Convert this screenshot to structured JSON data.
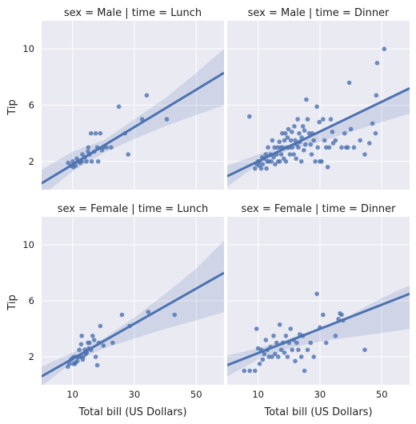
{
  "chart_data": {
    "type": "scatter",
    "xlabel": "Total bill (US Dollars)",
    "ylabel": "Tip",
    "xlim": [
      0,
      59
    ],
    "ylim": [
      0,
      12
    ],
    "xticks": [
      10,
      30,
      50
    ],
    "yticks": [
      2,
      6,
      10
    ],
    "grid": true,
    "panels": [
      {
        "title": "sex = Male | time = Lunch",
        "fit": {
          "x": [
            0,
            59
          ],
          "y": [
            0.45,
            8.3
          ]
        },
        "band": {
          "x": [
            0,
            10,
            20,
            30,
            40,
            50,
            59
          ],
          "lo": [
            -0.5,
            1.3,
            2.6,
            3.6,
            4.5,
            5.3,
            6.0
          ],
          "hi": [
            1.4,
            2.7,
            3.5,
            5.0,
            6.5,
            8.3,
            10.0
          ]
        },
        "points": [
          [
            8.6,
            1.9
          ],
          [
            9.5,
            1.7
          ],
          [
            10.1,
            2.0
          ],
          [
            10.3,
            1.6
          ],
          [
            11.0,
            1.7
          ],
          [
            11.4,
            2.2
          ],
          [
            12.0,
            2.0
          ],
          [
            12.5,
            1.9
          ],
          [
            13.0,
            2.0
          ],
          [
            13.2,
            2.5
          ],
          [
            14.0,
            2.3
          ],
          [
            14.5,
            2.0
          ],
          [
            15.0,
            2.7
          ],
          [
            15.1,
            3.0
          ],
          [
            15.5,
            2.5
          ],
          [
            16.0,
            4.0
          ],
          [
            16.2,
            2.0
          ],
          [
            17.0,
            2.7
          ],
          [
            17.5,
            4.0
          ],
          [
            18.0,
            3.0
          ],
          [
            18.3,
            2.0
          ],
          [
            19.0,
            4.0
          ],
          [
            19.5,
            2.8
          ],
          [
            20.0,
            3.0
          ],
          [
            21.0,
            3.0
          ],
          [
            22.5,
            3.0
          ],
          [
            25.0,
            5.9
          ],
          [
            27.0,
            4.0
          ],
          [
            28.0,
            2.5
          ],
          [
            32.5,
            5.0
          ],
          [
            34.0,
            6.7
          ],
          [
            40.5,
            5.0
          ]
        ]
      },
      {
        "title": "sex = Male | time = Dinner",
        "fit": {
          "x": [
            0,
            59
          ],
          "y": [
            0.95,
            7.2
          ]
        },
        "band": {
          "x": [
            0,
            10,
            20,
            30,
            40,
            50,
            59
          ],
          "lo": [
            0.2,
            1.8,
            2.8,
            3.4,
            4.1,
            4.8,
            5.4
          ],
          "hi": [
            1.7,
            2.5,
            3.2,
            4.1,
            5.2,
            6.3,
            7.3
          ]
        },
        "points": [
          [
            7.2,
            5.2
          ],
          [
            9.0,
            1.5
          ],
          [
            9.6,
            1.8
          ],
          [
            10.0,
            2.0
          ],
          [
            10.3,
            1.7
          ],
          [
            10.5,
            2.0
          ],
          [
            11.0,
            1.5
          ],
          [
            11.3,
            2.3
          ],
          [
            11.5,
            1.8
          ],
          [
            12.0,
            2.2
          ],
          [
            12.5,
            2.5
          ],
          [
            12.7,
            1.5
          ],
          [
            13.0,
            2.0
          ],
          [
            13.2,
            3.0
          ],
          [
            13.5,
            2.0
          ],
          [
            14.0,
            2.5
          ],
          [
            14.3,
            2.0
          ],
          [
            14.6,
            3.5
          ],
          [
            15.0,
            2.3
          ],
          [
            15.3,
            3.0
          ],
          [
            15.5,
            1.8
          ],
          [
            16.0,
            2.5
          ],
          [
            16.3,
            3.0
          ],
          [
            16.5,
            2.0
          ],
          [
            16.9,
            3.4
          ],
          [
            17.0,
            2.0
          ],
          [
            17.3,
            3.0
          ],
          [
            17.5,
            2.5
          ],
          [
            17.8,
            4.0
          ],
          [
            18.0,
            3.0
          ],
          [
            18.3,
            2.2
          ],
          [
            18.5,
            3.5
          ],
          [
            18.8,
            4.0
          ],
          [
            19.0,
            2.0
          ],
          [
            19.3,
            3.0
          ],
          [
            19.5,
            3.7
          ],
          [
            19.8,
            4.3
          ],
          [
            20.0,
            3.0
          ],
          [
            20.3,
            2.5
          ],
          [
            20.6,
            3.5
          ],
          [
            20.9,
            4.1
          ],
          [
            21.0,
            3.0
          ],
          [
            21.5,
            2.5
          ],
          [
            21.7,
            4.5
          ],
          [
            22.0,
            3.5
          ],
          [
            22.3,
            2.2
          ],
          [
            22.5,
            3.2
          ],
          [
            22.8,
            5.0
          ],
          [
            23.0,
            3.0
          ],
          [
            23.3,
            4.0
          ],
          [
            23.5,
            3.4
          ],
          [
            24.0,
            2.0
          ],
          [
            24.1,
            3.7
          ],
          [
            24.5,
            4.5
          ],
          [
            24.8,
            2.8
          ],
          [
            25.0,
            4.2
          ],
          [
            25.3,
            3.2
          ],
          [
            25.6,
            6.4
          ],
          [
            26.0,
            5.0
          ],
          [
            26.5,
            4.0
          ],
          [
            27.0,
            3.2
          ],
          [
            27.3,
            2.5
          ],
          [
            27.5,
            4.0
          ],
          [
            28.0,
            3.5
          ],
          [
            28.5,
            2.0
          ],
          [
            29.0,
            5.9
          ],
          [
            29.3,
            3.0
          ],
          [
            29.8,
            4.8
          ],
          [
            30.0,
            2.0
          ],
          [
            30.5,
            2.0
          ],
          [
            31.0,
            5.0
          ],
          [
            31.5,
            3.5
          ],
          [
            32.0,
            3.0
          ],
          [
            32.5,
            1.6
          ],
          [
            33.0,
            3.0
          ],
          [
            33.5,
            5.0
          ],
          [
            34.0,
            4.1
          ],
          [
            34.3,
            3.3
          ],
          [
            35.0,
            3.5
          ],
          [
            37.0,
            3.0
          ],
          [
            38.0,
            4.0
          ],
          [
            38.5,
            3.0
          ],
          [
            39.0,
            3.0
          ],
          [
            39.5,
            7.6
          ],
          [
            40.0,
            4.3
          ],
          [
            41.0,
            3.0
          ],
          [
            43.0,
            3.5
          ],
          [
            44.5,
            2.5
          ],
          [
            46.0,
            3.3
          ],
          [
            47.0,
            4.7
          ],
          [
            48.0,
            4.0
          ],
          [
            48.2,
            6.7
          ],
          [
            48.5,
            9.0
          ],
          [
            50.8,
            10.0
          ]
        ]
      },
      {
        "title": "sex = Female | time = Lunch",
        "fit": {
          "x": [
            0,
            59
          ],
          "y": [
            0.6,
            8.0
          ]
        },
        "band": {
          "x": [
            0,
            10,
            20,
            30,
            40,
            50,
            59
          ],
          "lo": [
            -0.1,
            1.6,
            2.6,
            3.3,
            4.0,
            4.6,
            5.2
          ],
          "hi": [
            1.3,
            2.3,
            3.3,
            4.8,
            6.5,
            8.3,
            10.3
          ]
        },
        "points": [
          [
            8.5,
            1.3
          ],
          [
            9.0,
            1.5
          ],
          [
            9.5,
            1.8
          ],
          [
            10.0,
            1.9
          ],
          [
            10.3,
            1.5
          ],
          [
            10.5,
            2.0
          ],
          [
            10.8,
            1.5
          ],
          [
            11.0,
            1.6
          ],
          [
            11.3,
            2.0
          ],
          [
            11.6,
            1.7
          ],
          [
            12.0,
            2.0
          ],
          [
            12.2,
            2.5
          ],
          [
            12.5,
            2.0
          ],
          [
            12.8,
            2.9
          ],
          [
            13.0,
            3.5
          ],
          [
            13.3,
            1.8
          ],
          [
            13.5,
            2.0
          ],
          [
            14.0,
            2.5
          ],
          [
            14.3,
            2.2
          ],
          [
            14.6,
            2.3
          ],
          [
            15.0,
            3.0
          ],
          [
            15.3,
            2.6
          ],
          [
            15.5,
            3.0
          ],
          [
            16.0,
            2.5
          ],
          [
            16.5,
            3.5
          ],
          [
            17.0,
            3.2
          ],
          [
            17.5,
            2.0
          ],
          [
            18.0,
            1.4
          ],
          [
            18.5,
            3.0
          ],
          [
            19.0,
            4.2
          ],
          [
            20.0,
            2.8
          ],
          [
            23.0,
            3.0
          ],
          [
            26.0,
            5.0
          ],
          [
            28.5,
            4.2
          ],
          [
            34.5,
            5.2
          ],
          [
            43.0,
            5.0
          ]
        ]
      },
      {
        "title": "sex = Female | time = Dinner",
        "fit": {
          "x": [
            0,
            59
          ],
          "y": [
            1.4,
            6.5
          ]
        },
        "band": {
          "x": [
            0,
            10,
            20,
            30,
            40,
            50,
            59
          ],
          "lo": [
            0.6,
            1.8,
            2.6,
            3.1,
            3.4,
            3.7,
            4.0
          ],
          "hi": [
            2.1,
            2.6,
            3.3,
            4.0,
            5.0,
            6.2,
            7.1
          ]
        },
        "points": [
          [
            5.5,
            1.0
          ],
          [
            7.3,
            1.0
          ],
          [
            9.0,
            1.0
          ],
          [
            9.5,
            4.0
          ],
          [
            10.0,
            2.6
          ],
          [
            10.5,
            1.5
          ],
          [
            11.0,
            2.5
          ],
          [
            11.5,
            1.8
          ],
          [
            12.0,
            2.2
          ],
          [
            12.5,
            3.2
          ],
          [
            13.0,
            2.5
          ],
          [
            13.5,
            2.0
          ],
          [
            14.0,
            2.7
          ],
          [
            14.5,
            2.0
          ],
          [
            15.0,
            3.5
          ],
          [
            15.5,
            2.2
          ],
          [
            16.0,
            3.0
          ],
          [
            16.5,
            2.0
          ],
          [
            17.0,
            4.3
          ],
          [
            17.5,
            2.5
          ],
          [
            18.0,
            3.0
          ],
          [
            18.5,
            2.3
          ],
          [
            19.0,
            3.5
          ],
          [
            19.5,
            2.0
          ],
          [
            20.0,
            3.0
          ],
          [
            20.5,
            4.0
          ],
          [
            21.0,
            2.5
          ],
          [
            21.5,
            3.2
          ],
          [
            22.0,
            1.7
          ],
          [
            22.5,
            3.0
          ],
          [
            23.0,
            2.5
          ],
          [
            23.5,
            3.6
          ],
          [
            24.0,
            2.0
          ],
          [
            24.5,
            3.5
          ],
          [
            25.0,
            1.0
          ],
          [
            26.0,
            2.5
          ],
          [
            27.0,
            3.0
          ],
          [
            28.0,
            2.0
          ],
          [
            29.0,
            6.5
          ],
          [
            30.0,
            4.1
          ],
          [
            31.0,
            5.0
          ],
          [
            32.0,
            3.0
          ],
          [
            35.0,
            3.5
          ],
          [
            36.0,
            4.7
          ],
          [
            36.5,
            5.1
          ],
          [
            37.0,
            5.0
          ],
          [
            37.5,
            4.6
          ],
          [
            44.5,
            2.5
          ]
        ]
      }
    ]
  }
}
